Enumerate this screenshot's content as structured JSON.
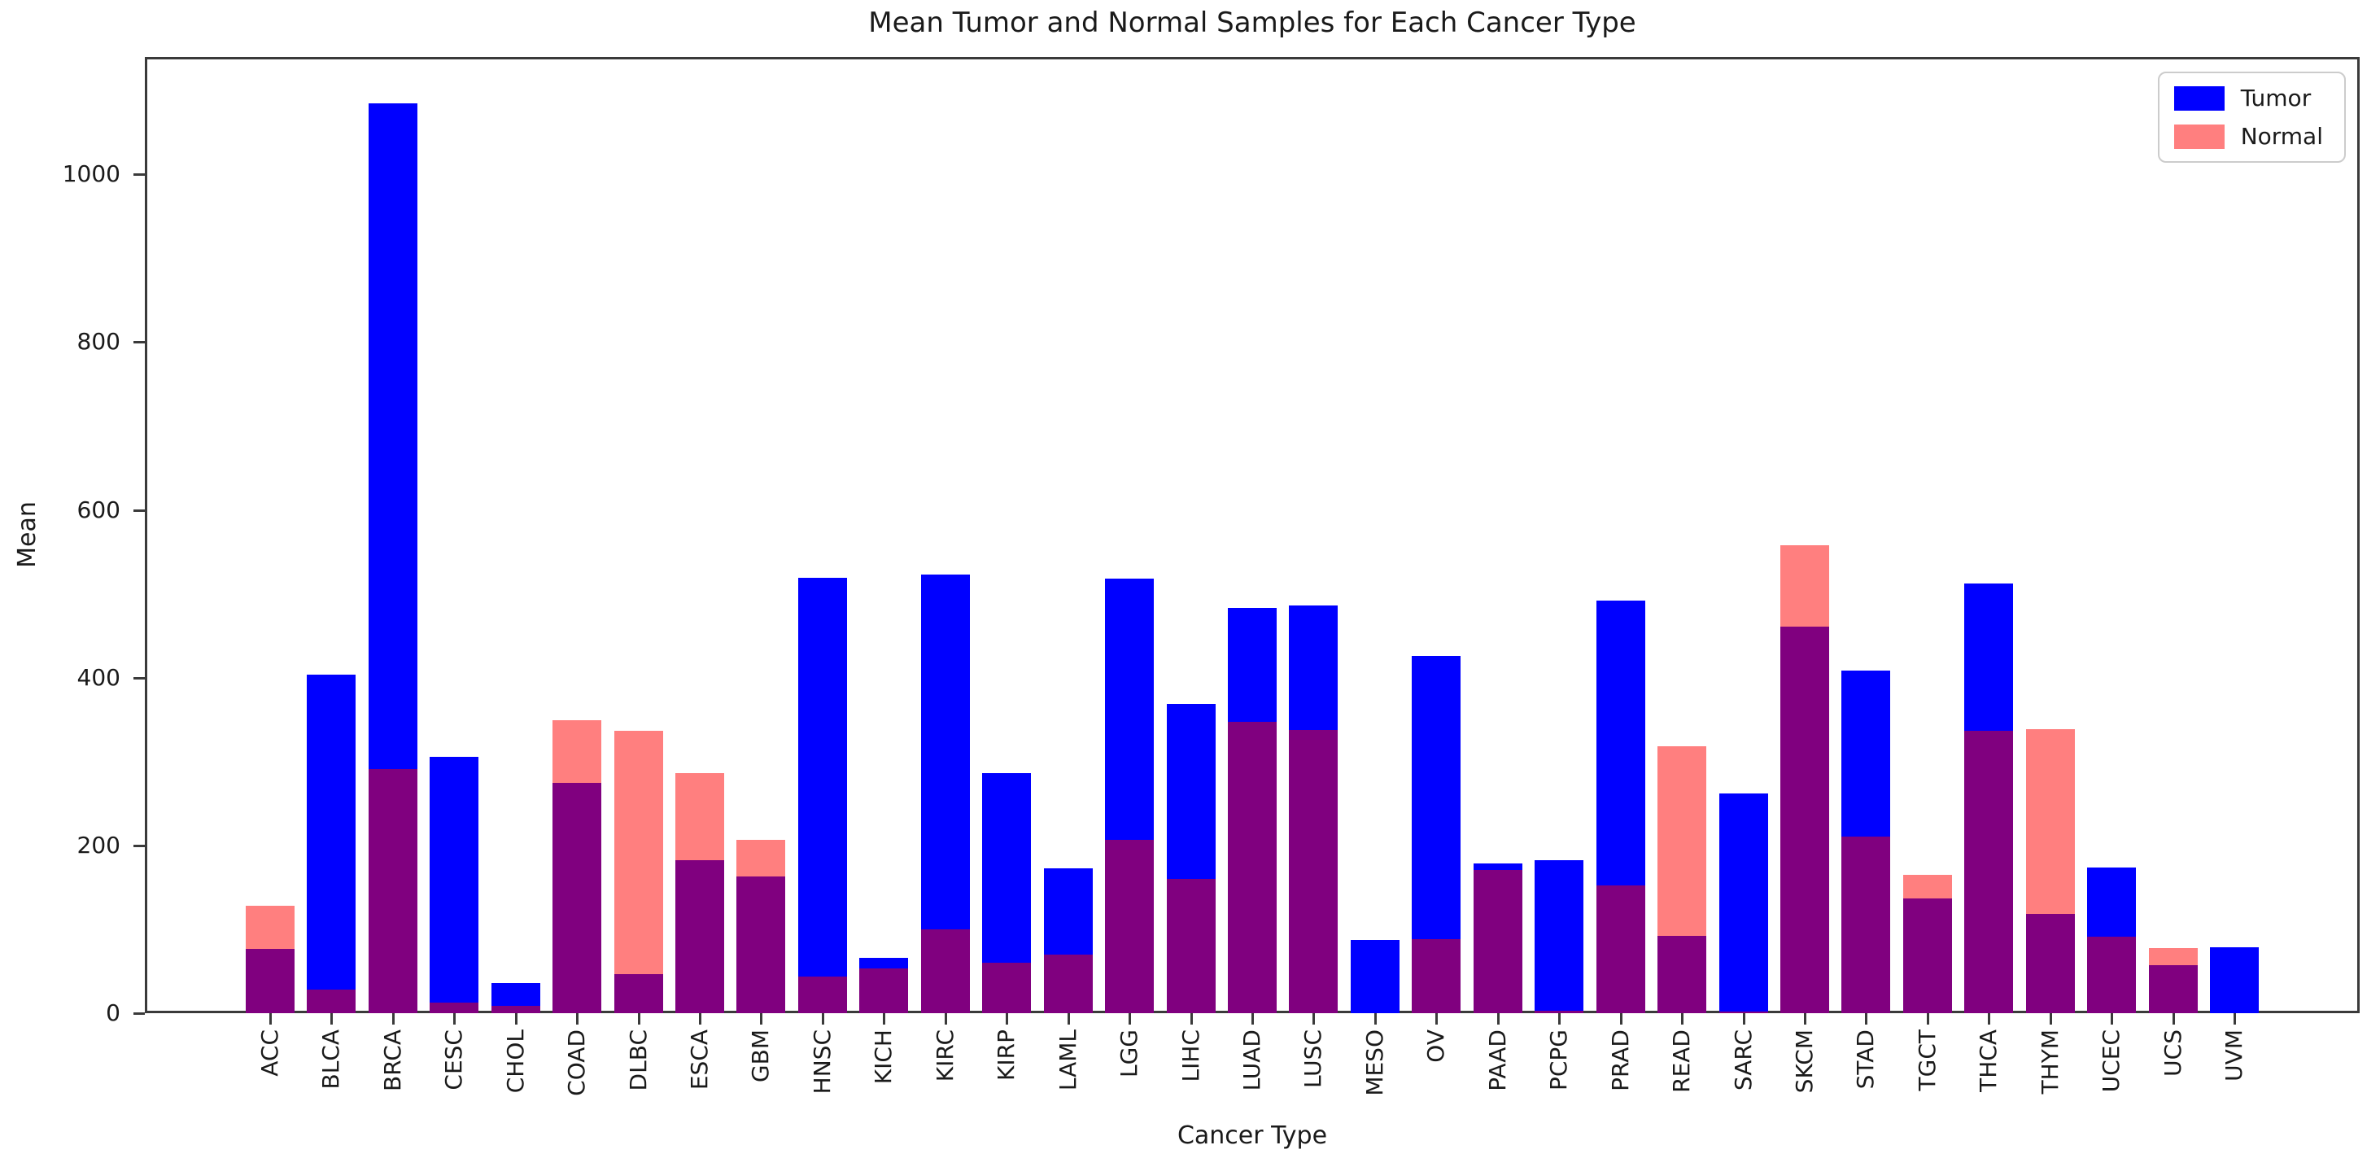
{
  "chart_data": {
    "type": "bar",
    "bar_mode": "overlay",
    "title": "Mean Tumor and Normal Samples for Each Cancer Type",
    "xlabel": "Cancer Type",
    "ylabel": "Mean",
    "categories": [
      "ACC",
      "BLCA",
      "BRCA",
      "CESC",
      "CHOL",
      "COAD",
      "DLBC",
      "ESCA",
      "GBM",
      "HNSC",
      "KICH",
      "KIRC",
      "KIRP",
      "LAML",
      "LGG",
      "LIHC",
      "LUAD",
      "LUSC",
      "MESO",
      "OV",
      "PAAD",
      "PCPG",
      "PRAD",
      "READ",
      "SARC",
      "SKCM",
      "STAD",
      "TGCT",
      "THCA",
      "THYM",
      "UCEC",
      "UCS",
      "UVM"
    ],
    "series": [
      {
        "name": "Tumor",
        "color": "#0000ff",
        "values": [
          77,
          404,
          1085,
          306,
          36,
          275,
          47,
          182,
          163,
          519,
          66,
          523,
          286,
          173,
          518,
          369,
          483,
          486,
          87,
          426,
          179,
          182,
          492,
          92,
          262,
          461,
          408,
          137,
          512,
          118,
          174,
          57,
          79
        ]
      },
      {
        "name": "Normal",
        "color": "rgba(255,0,0,0.5)",
        "values": [
          128,
          28,
          291,
          13,
          9,
          349,
          337,
          286,
          207,
          44,
          53,
          100,
          60,
          70,
          207,
          160,
          347,
          338,
          0,
          88,
          171,
          3,
          152,
          318,
          2,
          558,
          211,
          165,
          337,
          339,
          91,
          78,
          0
        ]
      }
    ],
    "overlap_color": "#800080",
    "yticks": [
      0,
      200,
      400,
      600,
      800,
      1000
    ],
    "ylim": [
      0,
      1140
    ],
    "grid": false,
    "legend_position": "upper right"
  }
}
